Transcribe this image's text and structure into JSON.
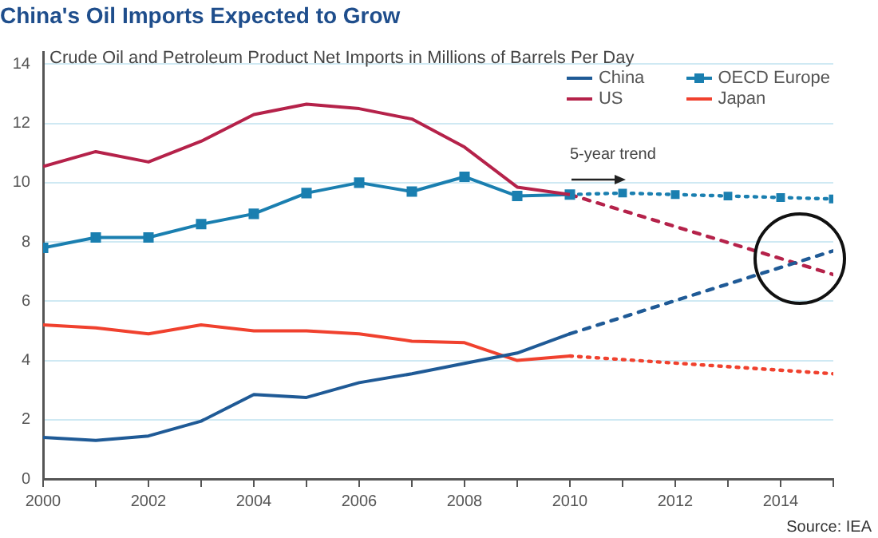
{
  "chart_data": {
    "type": "line",
    "title": "China's Oil Imports Expected to Grow",
    "subtitle": "Crude Oil and Petroleum Product Net Imports in Millions of Barrels Per Day",
    "annotations": [
      "5-year trend",
      "Source: IEA"
    ],
    "xlim": [
      2000,
      2015
    ],
    "ylim": [
      0,
      14.4
    ],
    "xticks": [
      2000,
      {
        "value": 2001,
        "label": null
      },
      2002,
      {
        "value": 2003,
        "label": null
      },
      2004,
      {
        "value": 2005,
        "label": null
      },
      2006,
      {
        "value": 2007,
        "label": null
      },
      2008,
      {
        "value": 2009,
        "label": null
      },
      2010,
      {
        "value": 2011,
        "label": null
      },
      2012,
      {
        "value": 2013,
        "label": null
      },
      2014,
      {
        "value": 2015,
        "label": null
      }
    ],
    "yticks": [
      0,
      2,
      4,
      6,
      8,
      10,
      12,
      14
    ],
    "grid": "y",
    "legend": "top right",
    "marker": "none",
    "line_style": "solid",
    "series": [
      {
        "name": "China",
        "color": "#1f5a96",
        "x": [
          2000,
          2001,
          2002,
          2003,
          2004,
          2005,
          2006,
          2007,
          2008,
          2009,
          2010
        ],
        "values": [
          1.4,
          1.3,
          1.45,
          1.95,
          2.85,
          2.75,
          3.25,
          3.55,
          3.9,
          4.25,
          4.9
        ]
      },
      {
        "name": "US",
        "color": "#b5224a",
        "x": [
          2000,
          2001,
          2002,
          2003,
          2004,
          2005,
          2006,
          2007,
          2008,
          2009,
          2010
        ],
        "values": [
          10.55,
          11.05,
          10.7,
          11.4,
          12.3,
          12.65,
          12.5,
          12.15,
          11.2,
          9.85,
          9.6
        ]
      },
      {
        "name": "OECD Europe",
        "color": "#1a7fb0",
        "marker": "square",
        "x": [
          2000,
          2001,
          2002,
          2003,
          2004,
          2005,
          2006,
          2007,
          2008,
          2009,
          2010
        ],
        "values": [
          7.8,
          8.15,
          8.15,
          8.6,
          8.95,
          9.65,
          10.0,
          9.7,
          10.2,
          9.55,
          9.6
        ]
      },
      {
        "name": "Japan",
        "color": "#f0412e",
        "x": [
          2000,
          2001,
          2002,
          2003,
          2004,
          2005,
          2006,
          2007,
          2008,
          2009,
          2010
        ],
        "values": [
          5.2,
          5.1,
          4.9,
          5.2,
          5.0,
          5.0,
          4.9,
          4.65,
          4.6,
          4.0,
          4.15
        ]
      },
      {
        "color": "#1f5a96",
        "line_style": "dashed",
        "x": [
          2010,
          2015
        ],
        "values": [
          4.9,
          7.7
        ]
      },
      {
        "color": "#b5224a",
        "line_style": "dashed",
        "x": [
          2010,
          2015
        ],
        "values": [
          9.6,
          6.9
        ]
      },
      {
        "color": "#1a7fb0",
        "line_style": "dotted",
        "marker": "square",
        "x": [
          2010,
          2011,
          2012,
          2013,
          2014,
          2015
        ],
        "values": [
          9.6,
          9.65,
          9.6,
          9.55,
          9.5,
          9.45
        ]
      },
      {
        "color": "#f0412e",
        "line_style": "dotted",
        "x": [
          2010,
          2015
        ],
        "values": [
          4.15,
          3.55
        ]
      }
    ]
  }
}
